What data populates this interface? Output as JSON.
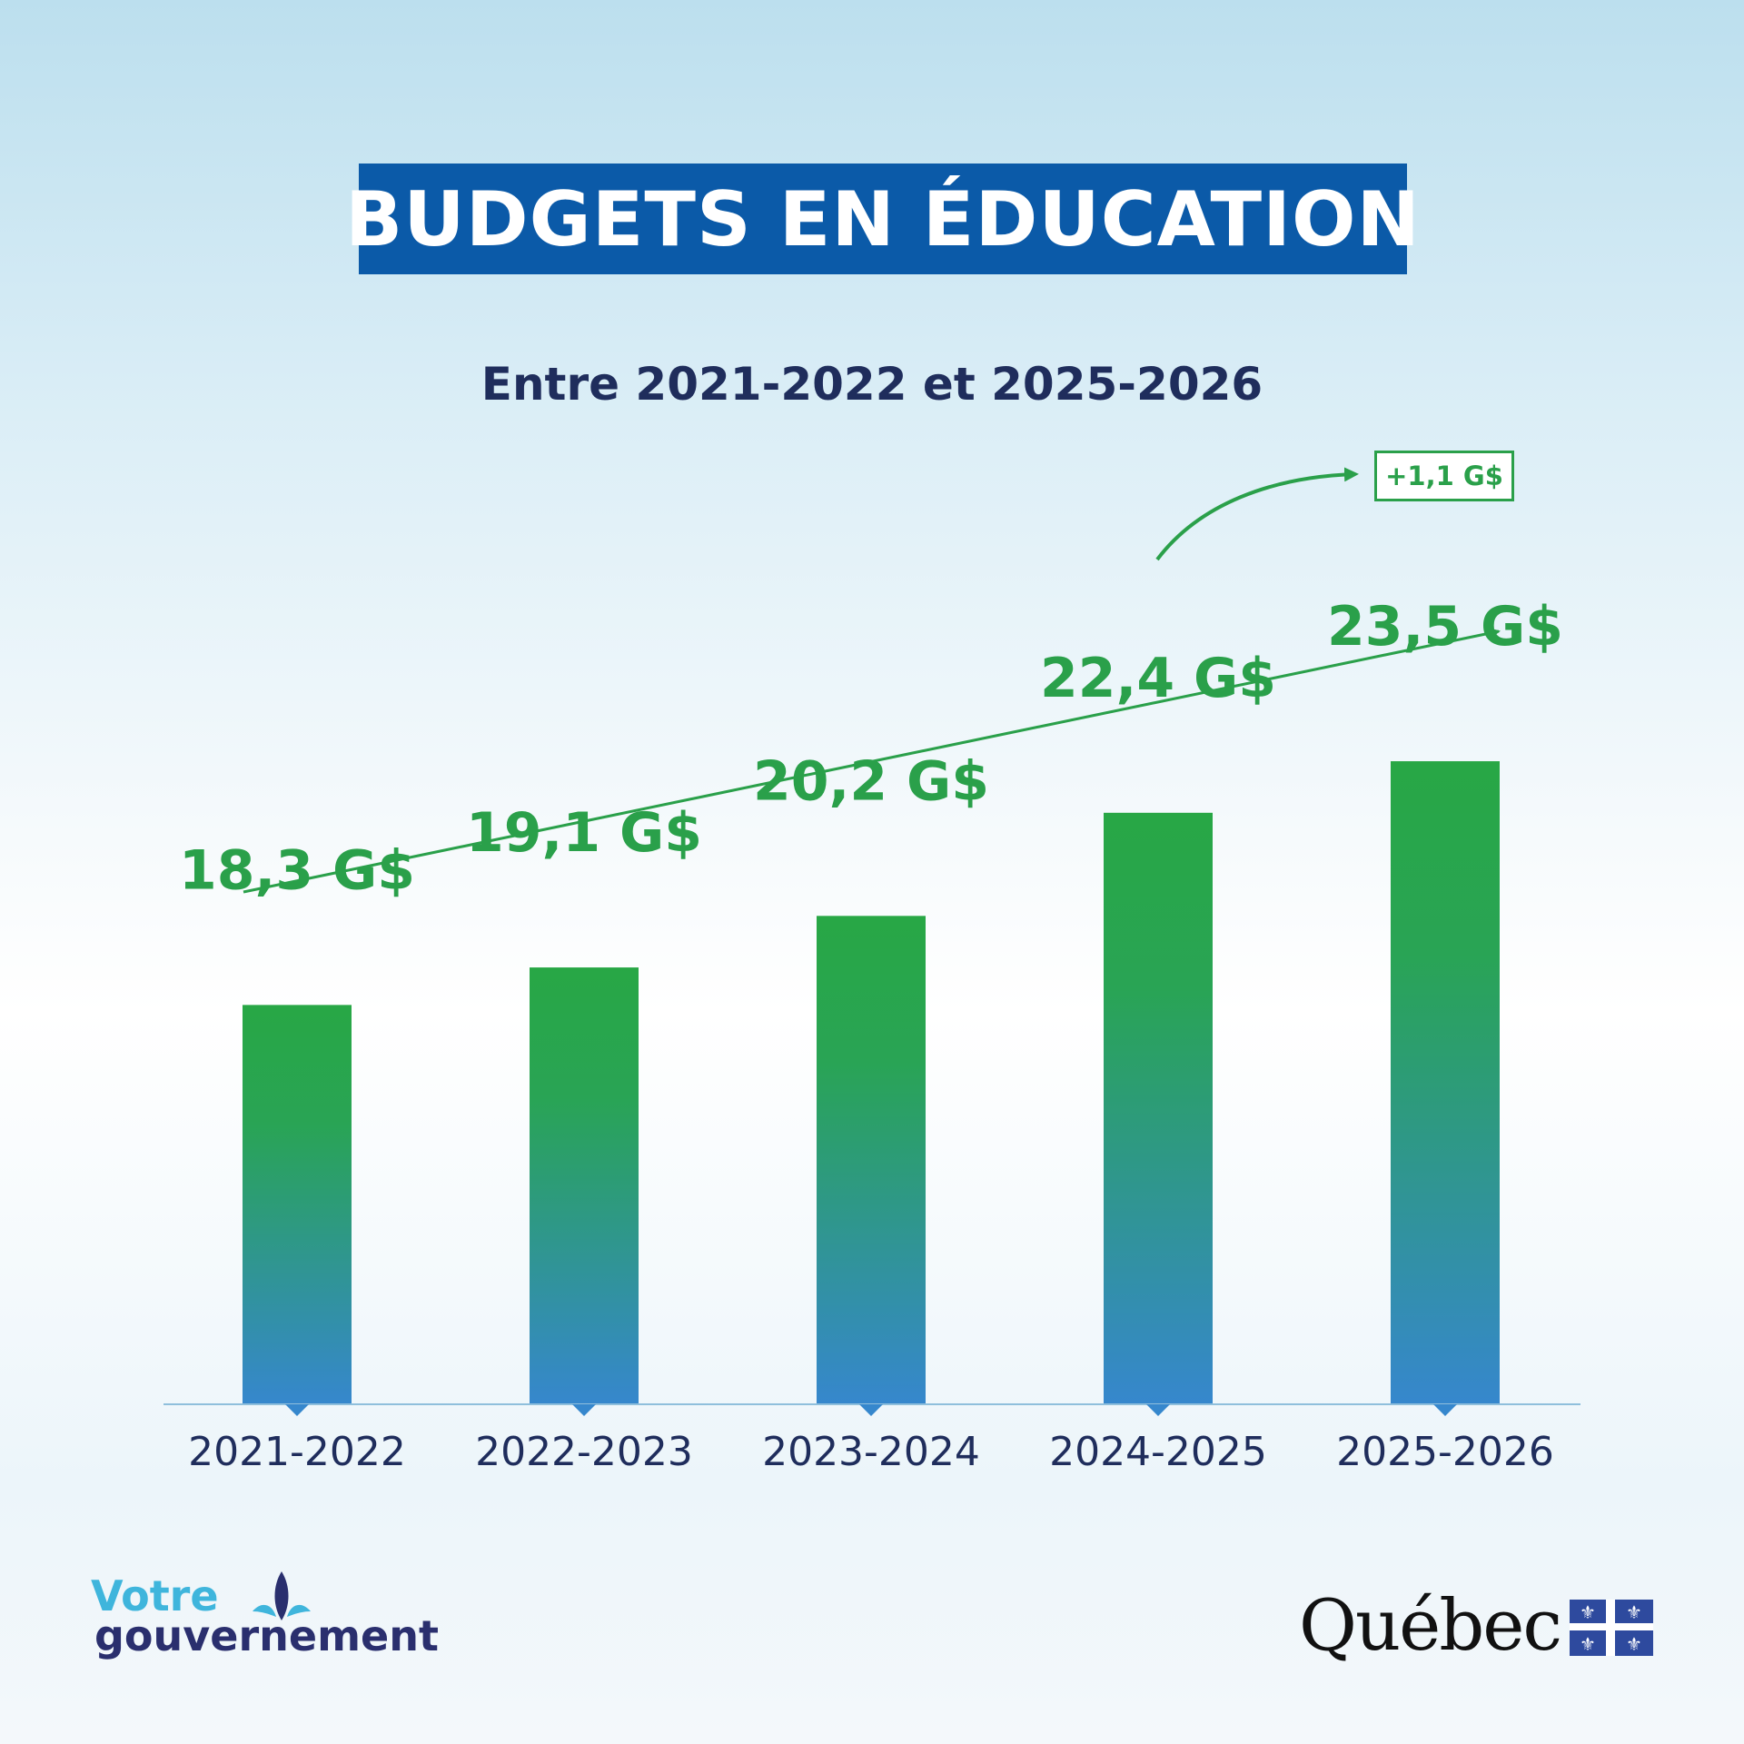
{
  "title": "BUDGETS EN ÉDUCATION",
  "subtitle": "Entre 2021-2022 et 2025-2026",
  "delta_label": "+1,1 G$",
  "chart_data": {
    "type": "bar",
    "categories": [
      "2021-2022",
      "2022-2023",
      "2023-2024",
      "2024-2025",
      "2025-2026"
    ],
    "values": [
      18.3,
      19.1,
      20.2,
      22.4,
      23.5
    ],
    "value_labels": [
      "18,3 G$",
      "19,1 G$",
      "20,2 G$",
      "22,4 G$",
      "23,5 G$"
    ],
    "unit": "G$",
    "trend_arrow": true,
    "annotation": {
      "text": "+1,1 G$",
      "from_category": "2024-2025",
      "to_category": "2025-2026"
    },
    "colors": {
      "bar_top": "#28a745",
      "bar_bottom": "#3687cd",
      "label": "#2aa04a",
      "axis": "#8fbfdc"
    },
    "grid": false
  },
  "logos": {
    "left_line1": "Votre",
    "left_line2": "gouvernement",
    "right_text": "Québec"
  },
  "colors": {
    "title_bg": "#0b5aa8",
    "title_text": "#ffffff",
    "subtitle": "#1f2d5c"
  }
}
